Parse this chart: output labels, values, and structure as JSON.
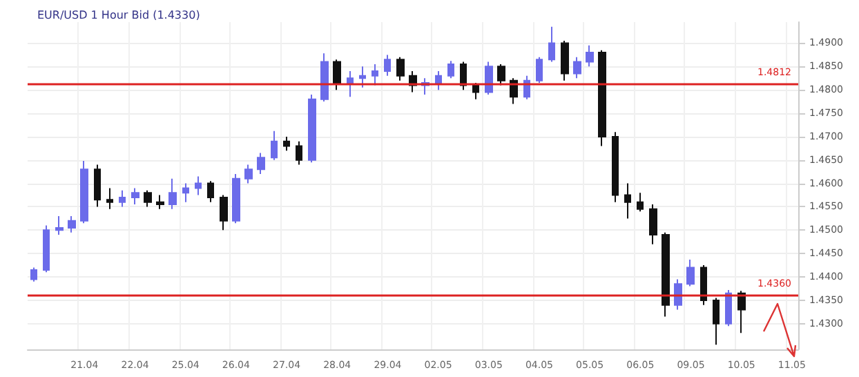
{
  "chart_data": {
    "type": "candlestick",
    "title": "EUR/USD 1 Hour Bid (1.4330)",
    "categories": [
      null,
      null,
      null,
      null,
      "21.04",
      null,
      null,
      null,
      "22.04",
      null,
      null,
      null,
      "25.04",
      null,
      null,
      null,
      "26.04",
      null,
      null,
      null,
      "27.04",
      null,
      null,
      null,
      "28.04",
      null,
      null,
      null,
      "29.04",
      null,
      null,
      null,
      "02.05",
      null,
      null,
      null,
      "03.05",
      null,
      null,
      null,
      "04.05",
      null,
      null,
      null,
      "05.05",
      null,
      null,
      null,
      "06.05",
      null,
      null,
      null,
      "09.05",
      null,
      null,
      null,
      "10.05",
      null,
      null,
      null,
      "11.05"
    ],
    "colors": [
      "#6b6bea",
      "#6b6bea",
      "#6b6bea",
      "#6b6bea",
      "#6b6bea",
      "#111111",
      "#111111",
      "#6b6bea",
      "#6b6bea",
      "#111111",
      "#111111",
      "#6b6bea",
      "#6b6bea",
      "#6b6bea",
      "#111111",
      "#111111",
      "#6b6bea",
      "#6b6bea",
      "#6b6bea",
      "#6b6bea",
      "#111111",
      "#111111",
      "#6b6bea",
      "#6b6bea",
      "#111111",
      "#6b6bea",
      "#6b6bea",
      "#6b6bea",
      "#6b6bea",
      "#111111",
      "#111111",
      "#6b6bea",
      "#6b6bea",
      "#6b6bea",
      "#111111",
      "#111111",
      "#6b6bea",
      "#111111",
      "#111111",
      "#6b6bea",
      "#6b6bea",
      "#6b6bea",
      "#111111",
      "#6b6bea",
      "#6b6bea",
      "#111111",
      "#111111",
      "#111111",
      "#111111",
      "#111111",
      "#111111",
      "#6b6bea",
      "#6b6bea",
      "#111111",
      "#111111",
      "#6b6bea",
      "#111111",
      null,
      null,
      null,
      null
    ],
    "ohlc": [
      [
        1.4395,
        1.442,
        1.439,
        1.4415
      ],
      [
        1.4415,
        1.451,
        1.441,
        1.45
      ],
      [
        1.45,
        1.453,
        1.449,
        1.4505
      ],
      [
        1.4505,
        1.453,
        1.4495,
        1.452
      ],
      [
        1.452,
        1.4648,
        1.4515,
        1.463
      ],
      [
        1.463,
        1.464,
        1.455,
        1.4565
      ],
      [
        1.4565,
        1.459,
        1.4545,
        1.456
      ],
      [
        1.456,
        1.4585,
        1.455,
        1.457
      ],
      [
        1.457,
        1.459,
        1.4555,
        1.458
      ],
      [
        1.458,
        1.4585,
        1.455,
        1.456
      ],
      [
        1.456,
        1.4575,
        1.4545,
        1.4555
      ],
      [
        1.4555,
        1.461,
        1.4545,
        1.458
      ],
      [
        1.458,
        1.46,
        1.456,
        1.459
      ],
      [
        1.459,
        1.4615,
        1.4575,
        1.46
      ],
      [
        1.46,
        1.4605,
        1.456,
        1.457
      ],
      [
        1.457,
        1.4575,
        1.45,
        1.452
      ],
      [
        1.452,
        1.462,
        1.4515,
        1.461
      ],
      [
        1.461,
        1.464,
        1.46,
        1.463
      ],
      [
        1.463,
        1.4665,
        1.462,
        1.4655
      ],
      [
        1.4655,
        1.4712,
        1.465,
        1.469
      ],
      [
        1.469,
        1.47,
        1.467,
        1.468
      ],
      [
        1.468,
        1.469,
        1.464,
        1.465
      ],
      [
        1.465,
        1.479,
        1.4645,
        1.478
      ],
      [
        1.478,
        1.4878,
        1.4775,
        1.486
      ],
      [
        1.486,
        1.4865,
        1.48,
        1.4815
      ],
      [
        1.4815,
        1.484,
        1.4785,
        1.4825
      ],
      [
        1.4825,
        1.485,
        1.4805,
        1.483
      ],
      [
        1.483,
        1.4855,
        1.481,
        1.484
      ],
      [
        1.484,
        1.4875,
        1.483,
        1.4865
      ],
      [
        1.4865,
        1.487,
        1.482,
        1.483
      ],
      [
        1.483,
        1.484,
        1.4795,
        1.481
      ],
      [
        1.481,
        1.4825,
        1.479,
        1.4815
      ],
      [
        1.4815,
        1.484,
        1.48,
        1.483
      ],
      [
        1.483,
        1.4862,
        1.4825,
        1.4855
      ],
      [
        1.4855,
        1.486,
        1.48,
        1.481
      ],
      [
        1.481,
        1.4815,
        1.478,
        1.4795
      ],
      [
        1.4795,
        1.486,
        1.479,
        1.485
      ],
      [
        1.485,
        1.4855,
        1.481,
        1.482
      ],
      [
        1.482,
        1.4825,
        1.477,
        1.4785
      ],
      [
        1.4785,
        1.483,
        1.478,
        1.482
      ],
      [
        1.482,
        1.487,
        1.4815,
        1.4865
      ],
      [
        1.4865,
        1.4935,
        1.486,
        1.49
      ],
      [
        1.49,
        1.4905,
        1.482,
        1.4835
      ],
      [
        1.4835,
        1.487,
        1.4825,
        1.486
      ],
      [
        1.486,
        1.4895,
        1.485,
        1.488
      ],
      [
        1.488,
        1.4885,
        1.468,
        1.47
      ],
      [
        1.47,
        1.471,
        1.456,
        1.4575
      ],
      [
        1.4575,
        1.46,
        1.4525,
        1.456
      ],
      [
        1.456,
        1.458,
        1.454,
        1.4545
      ],
      [
        1.4545,
        1.4555,
        1.447,
        1.449
      ],
      [
        1.449,
        1.4495,
        1.4315,
        1.434
      ],
      [
        1.434,
        1.4395,
        1.433,
        1.4385
      ],
      [
        1.4385,
        1.4437,
        1.438,
        1.442
      ],
      [
        1.442,
        1.4425,
        1.434,
        1.435
      ],
      [
        1.435,
        1.4355,
        1.4255,
        1.43
      ],
      [
        1.43,
        1.4372,
        1.4295,
        1.4365
      ],
      [
        1.4365,
        1.437,
        1.428,
        1.433
      ],
      null,
      null,
      null,
      null
    ],
    "ylim": [
      1.4245,
      1.4945
    ],
    "yticks": [
      {
        "value": 1.43,
        "label": "1.4300"
      },
      {
        "value": 1.435,
        "label": "1.4350"
      },
      {
        "value": 1.44,
        "label": "1.4400"
      },
      {
        "value": 1.445,
        "label": "1.4450"
      },
      {
        "value": 1.45,
        "label": "1.4500"
      },
      {
        "value": 1.455,
        "label": "1.4550"
      },
      {
        "value": 1.46,
        "label": "1.4600"
      },
      {
        "value": 1.465,
        "label": "1.4650"
      },
      {
        "value": 1.47,
        "label": "1.4700"
      },
      {
        "value": 1.475,
        "label": "1.4750"
      },
      {
        "value": 1.48,
        "label": "1.4800"
      },
      {
        "value": 1.485,
        "label": "1.4850"
      },
      {
        "value": 1.49,
        "label": "1.4900"
      }
    ],
    "ref_lines": [
      {
        "axis": "y",
        "value": 1.4812,
        "label": "1.4812",
        "color": "#dd2222"
      },
      {
        "axis": "y",
        "value": 1.436,
        "label": "1.4360",
        "color": "#dd2222"
      }
    ],
    "grid": true
  }
}
